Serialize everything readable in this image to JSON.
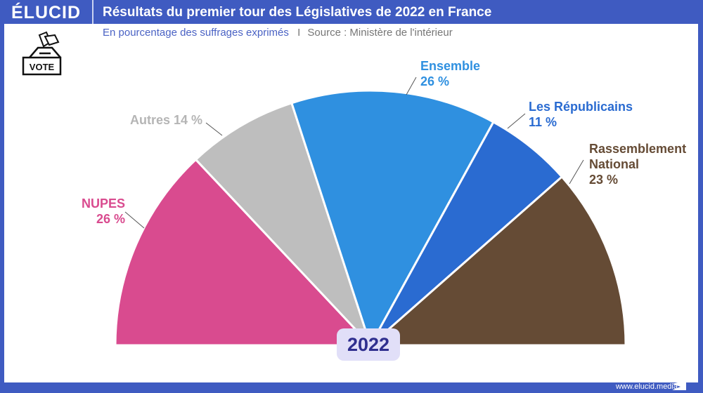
{
  "header": {
    "logo": "ÉLUCID",
    "title": "Résultats du premier tour des Législatives de 2022 en France"
  },
  "subtitle": {
    "text": "En pourcentage des suffrages exprimés",
    "source": "Source : Ministère de l'intérieur",
    "separator": "I"
  },
  "icon": {
    "name": "ballot-box-icon",
    "label": "VOTE"
  },
  "footer": {
    "url": "www.elucid.media"
  },
  "colors": {
    "frame": "#3f5bc1"
  },
  "chart_data": {
    "type": "pie",
    "subtype": "half-donut (semicircle)",
    "center_label": "2022",
    "unit": "%",
    "slices": [
      {
        "name": "NUPES",
        "value": 26,
        "label": "26 %",
        "color": "#d94b8f"
      },
      {
        "name": "Autres",
        "value": 14,
        "label": "14 %",
        "color": "#bebebe"
      },
      {
        "name": "Ensemble",
        "value": 26,
        "label": "26 %",
        "color": "#2f90e0"
      },
      {
        "name": "Les Républicains",
        "value": 11,
        "label": "11 %",
        "color": "#2a6bd1"
      },
      {
        "name": "Rassemblement National",
        "value": 23,
        "label": "23 %",
        "color": "#654b35"
      }
    ]
  }
}
